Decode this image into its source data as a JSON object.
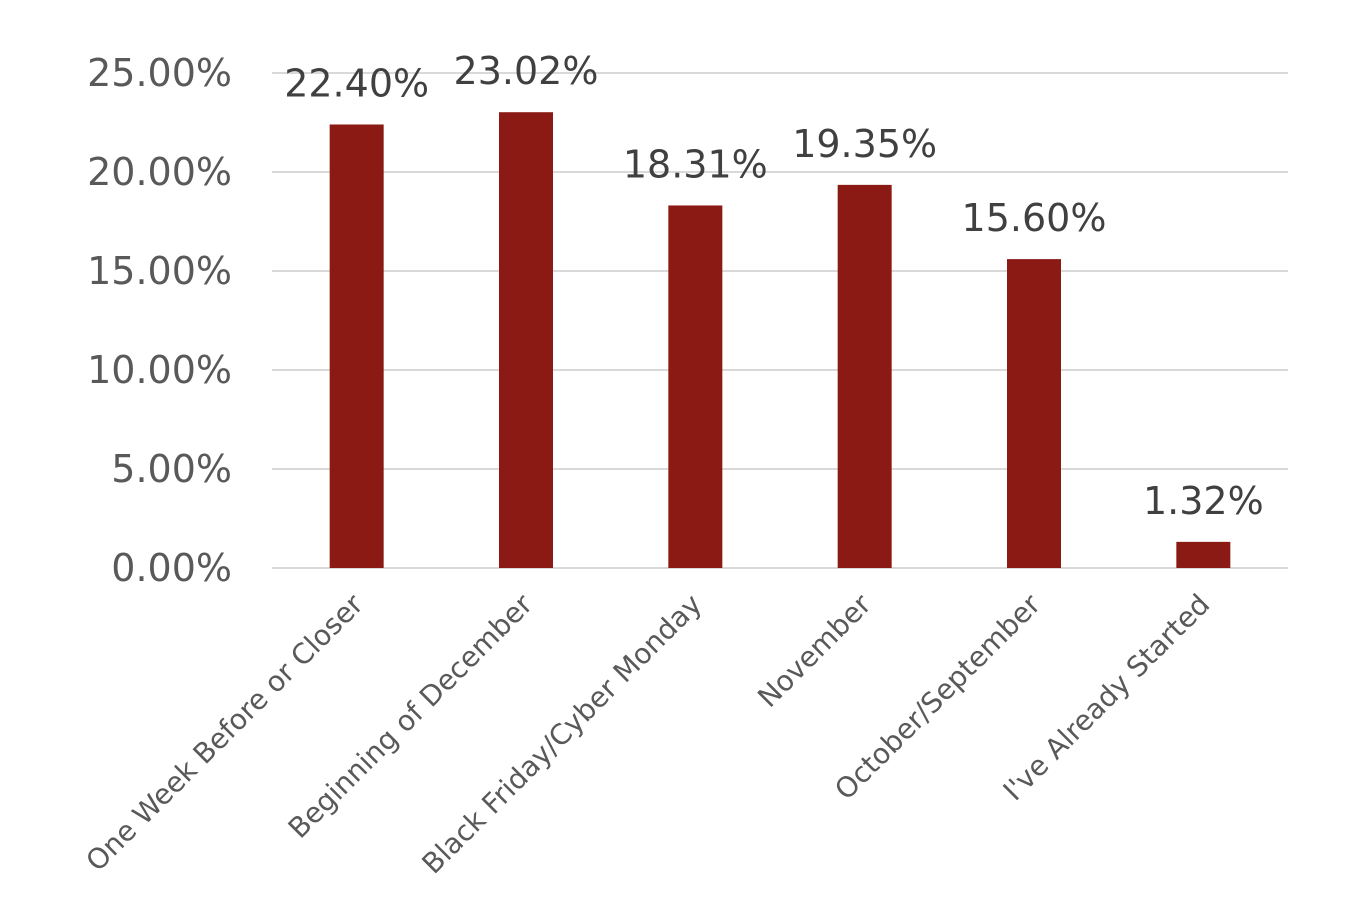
{
  "chart_data": {
    "type": "bar",
    "categories": [
      "One Week Before or Closer",
      "Beginning of December",
      "Black Friday/Cyber Monday",
      "November",
      "October/September",
      "I've Already Started"
    ],
    "values": [
      22.4,
      23.02,
      18.31,
      19.35,
      15.6,
      1.32
    ],
    "data_labels": [
      "22.40%",
      "23.02%",
      "18.31%",
      "19.35%",
      "15.60%",
      "1.32%"
    ],
    "yticks": [
      "0.00%",
      "5.00%",
      "10.00%",
      "15.00%",
      "20.00%",
      "25.00%"
    ],
    "ytick_values": [
      0,
      5,
      10,
      15,
      20,
      25
    ],
    "ylim": [
      0,
      25
    ],
    "grid": true,
    "legend": "none",
    "bar_color": "#8b1a14",
    "grid_color": "#d9d9d9"
  }
}
